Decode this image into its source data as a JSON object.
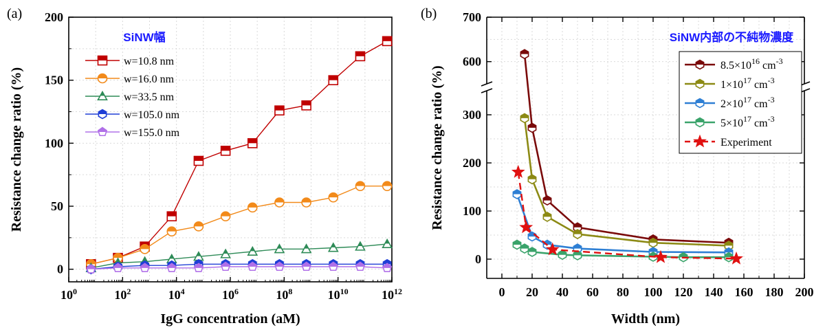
{
  "chart_data": [
    {
      "type": "line",
      "panel_label": "(a)",
      "xlabel": "IgG concentration (aM)",
      "ylabel": "Resistance change ratio (%)",
      "x_scale": "log",
      "xlim": [
        1,
        1000000000000
      ],
      "ylim": [
        -10,
        200
      ],
      "x_ticks": [
        1,
        100,
        10000,
        1000000,
        100000000,
        10000000000,
        1000000000000
      ],
      "x_tick_labels": [
        {
          "base": "10",
          "exp": "0"
        },
        {
          "base": "10",
          "exp": "2"
        },
        {
          "base": "10",
          "exp": "4"
        },
        {
          "base": "10",
          "exp": "6"
        },
        {
          "base": "10",
          "exp": "8"
        },
        {
          "base": "10",
          "exp": "10"
        },
        {
          "base": "10",
          "exp": "12"
        }
      ],
      "y_ticks": [
        0,
        50,
        100,
        150,
        200
      ],
      "grid": true,
      "legend_title": "SiNW幅",
      "legend_position": "top-left",
      "x": [
        6.7,
        67,
        667,
        6670,
        66700,
        667000,
        6670000,
        66700000,
        667000000,
        6670000000,
        66700000000,
        667000000000
      ],
      "series": [
        {
          "name": "w=10.8 nm",
          "marker": "square",
          "color": "#c00000",
          "values": [
            4,
            9,
            18,
            42,
            86,
            94,
            100,
            126,
            130,
            150,
            169,
            181
          ]
        },
        {
          "name": "w=16.0 nm",
          "marker": "circle",
          "color": "#f28a1a",
          "values": [
            4,
            9,
            16,
            30,
            34,
            42,
            49,
            53,
            53,
            57,
            66,
            66
          ]
        },
        {
          "name": "w=33.5 nm",
          "marker": "triangle",
          "color": "#2e8b57",
          "values": [
            1,
            5,
            6,
            8,
            10,
            12,
            14,
            16,
            16,
            17,
            18,
            20
          ]
        },
        {
          "name": "w=105.0 nm",
          "marker": "hexagon",
          "color": "#1f3fd6",
          "values": [
            0,
            2,
            3,
            3,
            4,
            4,
            4,
            4,
            4,
            4,
            4,
            4
          ]
        },
        {
          "name": "w=155.0 nm",
          "marker": "pentagon",
          "color": "#b070e8",
          "values": [
            0,
            1,
            1,
            1,
            1,
            2,
            2,
            2,
            2,
            2,
            2,
            1
          ]
        }
      ]
    },
    {
      "type": "line",
      "panel_label": "(b)",
      "xlabel": "Width (nm)",
      "ylabel": "Resistance change ratio (%)",
      "xlim": [
        -10,
        200
      ],
      "x_ticks": [
        0,
        20,
        40,
        60,
        80,
        100,
        120,
        140,
        160,
        180,
        200
      ],
      "y_axis_break": true,
      "y_lower_range": [
        -40,
        350
      ],
      "y_upper_range": [
        550,
        700
      ],
      "y_ticks": [
        0,
        100,
        200,
        300,
        600,
        700
      ],
      "grid": true,
      "legend_title": "SiNW内部の不純物濃度",
      "legend_position": "top-right",
      "series": [
        {
          "name_base": "8.5×10",
          "name_exp": "16",
          "name_unit": " cm",
          "name_unit_exp": "-3",
          "marker": "hexagon",
          "color": "#7a0a0a",
          "dashed": false,
          "x": [
            15,
            20,
            30,
            50,
            100,
            150
          ],
          "values": [
            617,
            273,
            122,
            66,
            41,
            34
          ]
        },
        {
          "name_base": "1×10",
          "name_exp": "17",
          "name_unit": " cm",
          "name_unit_exp": "-3",
          "marker": "hexagon",
          "color": "#8c8a14",
          "dashed": false,
          "x": [
            15,
            20,
            30,
            50,
            100,
            150
          ],
          "values": [
            293,
            166,
            88,
            52,
            34,
            28
          ]
        },
        {
          "name_base": "2×10",
          "name_exp": "17",
          "name_unit": " cm",
          "name_unit_exp": "-3",
          "marker": "hexagon",
          "color": "#2e7fd4",
          "dashed": false,
          "x": [
            10,
            20,
            30,
            50,
            100,
            150
          ],
          "values": [
            135,
            47,
            30,
            22,
            15,
            14
          ]
        },
        {
          "name_base": "5×10",
          "name_exp": "17",
          "name_unit": " cm",
          "name_unit_exp": "-3",
          "marker": "hexagon",
          "color": "#3aa36a",
          "dashed": false,
          "x": [
            10,
            15,
            20,
            40,
            50,
            100,
            120,
            150
          ],
          "values": [
            30,
            22,
            15,
            9,
            8,
            5,
            4,
            4
          ]
        },
        {
          "name_base": "Experiment",
          "name_exp": "",
          "name_unit": "",
          "name_unit_exp": "",
          "marker": "star",
          "color": "#e01010",
          "dashed": true,
          "x": [
            10.8,
            16.0,
            33.5,
            105.0,
            155.0
          ],
          "values": [
            181,
            66,
            20,
            4,
            1
          ]
        }
      ]
    }
  ]
}
